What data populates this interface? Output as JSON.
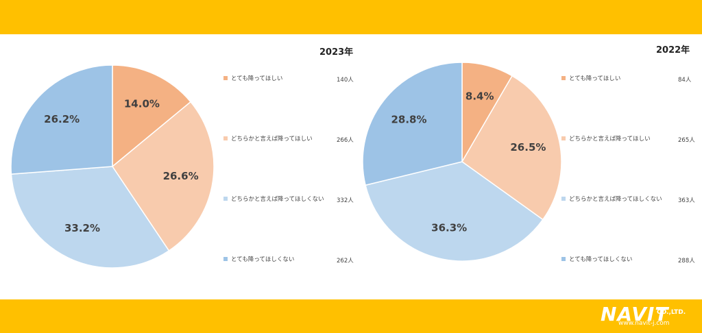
{
  "colors": {
    "band": "#ffc000",
    "background": "#ffffff",
    "slice_colors": [
      "#f4b183",
      "#f8cbad",
      "#bdd7ee",
      "#9dc3e6"
    ]
  },
  "logo": {
    "brand": "NAVIT",
    "suffix": "CO.,LTD.",
    "url": "www.navit-j.com"
  },
  "chart_data": [
    {
      "type": "pie",
      "title": "2023年",
      "labels": [
        "とても降ってほしい",
        "どちらかと言えば降ってほしい",
        "どちらかと言えば降ってほしくない",
        "とても降ってほしくない"
      ],
      "values": [
        14.0,
        26.6,
        33.2,
        26.2
      ],
      "value_labels": [
        "14.0%",
        "26.6%",
        "33.2%",
        "26.2%"
      ],
      "counts": [
        "140人",
        "266人",
        "332人",
        "262人"
      ],
      "legend_position": "right"
    },
    {
      "type": "pie",
      "title": "2022年",
      "labels": [
        "とても降ってほしい",
        "どちらかと言えば降ってほしい",
        "どちらかと言えば降ってほしくない",
        "とても降ってほしくない"
      ],
      "values": [
        8.4,
        26.5,
        36.3,
        28.8
      ],
      "value_labels": [
        "8.4%",
        "26.5%",
        "36.3%",
        "28.8%"
      ],
      "counts": [
        "84人",
        "265人",
        "363人",
        "288人"
      ],
      "legend_position": "right"
    }
  ]
}
